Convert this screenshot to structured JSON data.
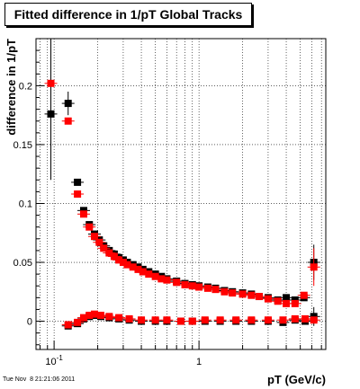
{
  "title": "Fitted difference in 1/pT  Global Tracks",
  "footer": "Tue Nov  8 21:21:06 2011",
  "chart_data": {
    "type": "scatter",
    "xlabel": "pT (GeV/c)",
    "ylabel": "difference in 1/pT",
    "x_scale": "log",
    "xlim": [
      0.075,
      7.5
    ],
    "ylim": [
      -0.024,
      0.24
    ],
    "grid": true,
    "x_major_ticks": [
      0.1,
      1
    ],
    "x_tick_labels": [
      "10^-1",
      "1"
    ],
    "y_ticks": [
      0,
      0.05,
      0.1,
      0.15,
      0.2
    ],
    "y_tick_labels": [
      "0",
      "0.05",
      "0.1",
      "0.15",
      "0.2"
    ],
    "series": [
      {
        "color": "#000000",
        "marker": "square",
        "points": [
          {
            "x": 0.095,
            "y": 0.176,
            "ylo": 0.12,
            "yhi": 0.24
          },
          {
            "x": 0.125,
            "y": 0.185,
            "ylo": 0.175,
            "yhi": 0.195
          },
          {
            "x": 0.145,
            "y": 0.118
          },
          {
            "x": 0.16,
            "y": 0.094
          },
          {
            "x": 0.175,
            "y": 0.082
          },
          {
            "x": 0.19,
            "y": 0.074
          },
          {
            "x": 0.205,
            "y": 0.069
          },
          {
            "x": 0.22,
            "y": 0.064
          },
          {
            "x": 0.24,
            "y": 0.06
          },
          {
            "x": 0.26,
            "y": 0.057
          },
          {
            "x": 0.28,
            "y": 0.054
          },
          {
            "x": 0.3,
            "y": 0.052
          },
          {
            "x": 0.32,
            "y": 0.05
          },
          {
            "x": 0.35,
            "y": 0.048
          },
          {
            "x": 0.38,
            "y": 0.046
          },
          {
            "x": 0.41,
            "y": 0.044
          },
          {
            "x": 0.45,
            "y": 0.042
          },
          {
            "x": 0.5,
            "y": 0.04
          },
          {
            "x": 0.55,
            "y": 0.038
          },
          {
            "x": 0.6,
            "y": 0.036
          },
          {
            "x": 0.7,
            "y": 0.034
          },
          {
            "x": 0.8,
            "y": 0.032
          },
          {
            "x": 0.9,
            "y": 0.031
          },
          {
            "x": 1.0,
            "y": 0.03
          },
          {
            "x": 1.15,
            "y": 0.029
          },
          {
            "x": 1.3,
            "y": 0.028
          },
          {
            "x": 1.5,
            "y": 0.026
          },
          {
            "x": 1.7,
            "y": 0.025
          },
          {
            "x": 2.0,
            "y": 0.024
          },
          {
            "x": 2.3,
            "y": 0.023
          },
          {
            "x": 2.6,
            "y": 0.021
          },
          {
            "x": 3.0,
            "y": 0.02
          },
          {
            "x": 3.5,
            "y": 0.018
          },
          {
            "x": 4.0,
            "y": 0.02
          },
          {
            "x": 4.6,
            "y": 0.018
          },
          {
            "x": 5.3,
            "y": 0.02
          },
          {
            "x": 6.2,
            "y": 0.05,
            "ylo": 0.035,
            "yhi": 0.065
          },
          {
            "x": 0.125,
            "y": -0.004
          },
          {
            "x": 0.145,
            "y": -0.002
          },
          {
            "x": 0.16,
            "y": 0.002
          },
          {
            "x": 0.175,
            "y": 0.004
          },
          {
            "x": 0.19,
            "y": 0.005
          },
          {
            "x": 0.21,
            "y": 0.004
          },
          {
            "x": 0.24,
            "y": 0.003
          },
          {
            "x": 0.28,
            "y": 0.002
          },
          {
            "x": 0.33,
            "y": 0.001
          },
          {
            "x": 0.4,
            "y": 0.0
          },
          {
            "x": 0.5,
            "y": 0.0
          },
          {
            "x": 0.6,
            "y": 0.0
          },
          {
            "x": 0.75,
            "y": 0.0
          },
          {
            "x": 0.9,
            "y": 0.0
          },
          {
            "x": 1.1,
            "y": 0.0
          },
          {
            "x": 1.4,
            "y": 0.0
          },
          {
            "x": 1.8,
            "y": 0.0
          },
          {
            "x": 2.3,
            "y": 0.0
          },
          {
            "x": 3.0,
            "y": 0.0
          },
          {
            "x": 3.8,
            "y": -0.001
          },
          {
            "x": 4.6,
            "y": 0.001
          },
          {
            "x": 5.4,
            "y": 0.0
          },
          {
            "x": 6.2,
            "y": 0.004,
            "ylo": -0.004,
            "yhi": 0.012
          }
        ]
      },
      {
        "color": "#ff0000",
        "marker": "square",
        "points": [
          {
            "x": 0.095,
            "y": 0.202
          },
          {
            "x": 0.125,
            "y": 0.17
          },
          {
            "x": 0.145,
            "y": 0.108
          },
          {
            "x": 0.16,
            "y": 0.091
          },
          {
            "x": 0.175,
            "y": 0.08
          },
          {
            "x": 0.19,
            "y": 0.072
          },
          {
            "x": 0.205,
            "y": 0.067
          },
          {
            "x": 0.22,
            "y": 0.062
          },
          {
            "x": 0.24,
            "y": 0.058
          },
          {
            "x": 0.26,
            "y": 0.055
          },
          {
            "x": 0.28,
            "y": 0.052
          },
          {
            "x": 0.3,
            "y": 0.05
          },
          {
            "x": 0.32,
            "y": 0.048
          },
          {
            "x": 0.35,
            "y": 0.046
          },
          {
            "x": 0.38,
            "y": 0.044
          },
          {
            "x": 0.41,
            "y": 0.042
          },
          {
            "x": 0.45,
            "y": 0.04
          },
          {
            "x": 0.5,
            "y": 0.038
          },
          {
            "x": 0.55,
            "y": 0.036
          },
          {
            "x": 0.6,
            "y": 0.035
          },
          {
            "x": 0.7,
            "y": 0.033
          },
          {
            "x": 0.8,
            "y": 0.031
          },
          {
            "x": 0.9,
            "y": 0.03
          },
          {
            "x": 1.0,
            "y": 0.029
          },
          {
            "x": 1.15,
            "y": 0.028
          },
          {
            "x": 1.3,
            "y": 0.027
          },
          {
            "x": 1.5,
            "y": 0.025
          },
          {
            "x": 1.7,
            "y": 0.024
          },
          {
            "x": 2.0,
            "y": 0.023
          },
          {
            "x": 2.3,
            "y": 0.022
          },
          {
            "x": 2.6,
            "y": 0.021
          },
          {
            "x": 3.0,
            "y": 0.019
          },
          {
            "x": 3.5,
            "y": 0.017
          },
          {
            "x": 4.0,
            "y": 0.015
          },
          {
            "x": 4.6,
            "y": 0.015
          },
          {
            "x": 5.3,
            "y": 0.022
          },
          {
            "x": 6.2,
            "y": 0.046,
            "ylo": 0.03,
            "yhi": 0.062
          },
          {
            "x": 0.125,
            "y": -0.003
          },
          {
            "x": 0.145,
            "y": -0.001
          },
          {
            "x": 0.16,
            "y": 0.003
          },
          {
            "x": 0.175,
            "y": 0.005
          },
          {
            "x": 0.19,
            "y": 0.006
          },
          {
            "x": 0.21,
            "y": 0.005
          },
          {
            "x": 0.24,
            "y": 0.004
          },
          {
            "x": 0.28,
            "y": 0.003
          },
          {
            "x": 0.33,
            "y": 0.002
          },
          {
            "x": 0.4,
            "y": 0.001
          },
          {
            "x": 0.5,
            "y": 0.001
          },
          {
            "x": 0.6,
            "y": 0.001
          },
          {
            "x": 0.75,
            "y": 0.0
          },
          {
            "x": 0.9,
            "y": 0.0
          },
          {
            "x": 1.1,
            "y": 0.001
          },
          {
            "x": 1.4,
            "y": 0.001
          },
          {
            "x": 1.8,
            "y": 0.001
          },
          {
            "x": 2.3,
            "y": 0.001
          },
          {
            "x": 3.0,
            "y": 0.001
          },
          {
            "x": 3.8,
            "y": 0.001
          },
          {
            "x": 4.6,
            "y": 0.002
          },
          {
            "x": 5.4,
            "y": 0.002
          },
          {
            "x": 6.2,
            "y": 0.001
          }
        ]
      }
    ]
  }
}
